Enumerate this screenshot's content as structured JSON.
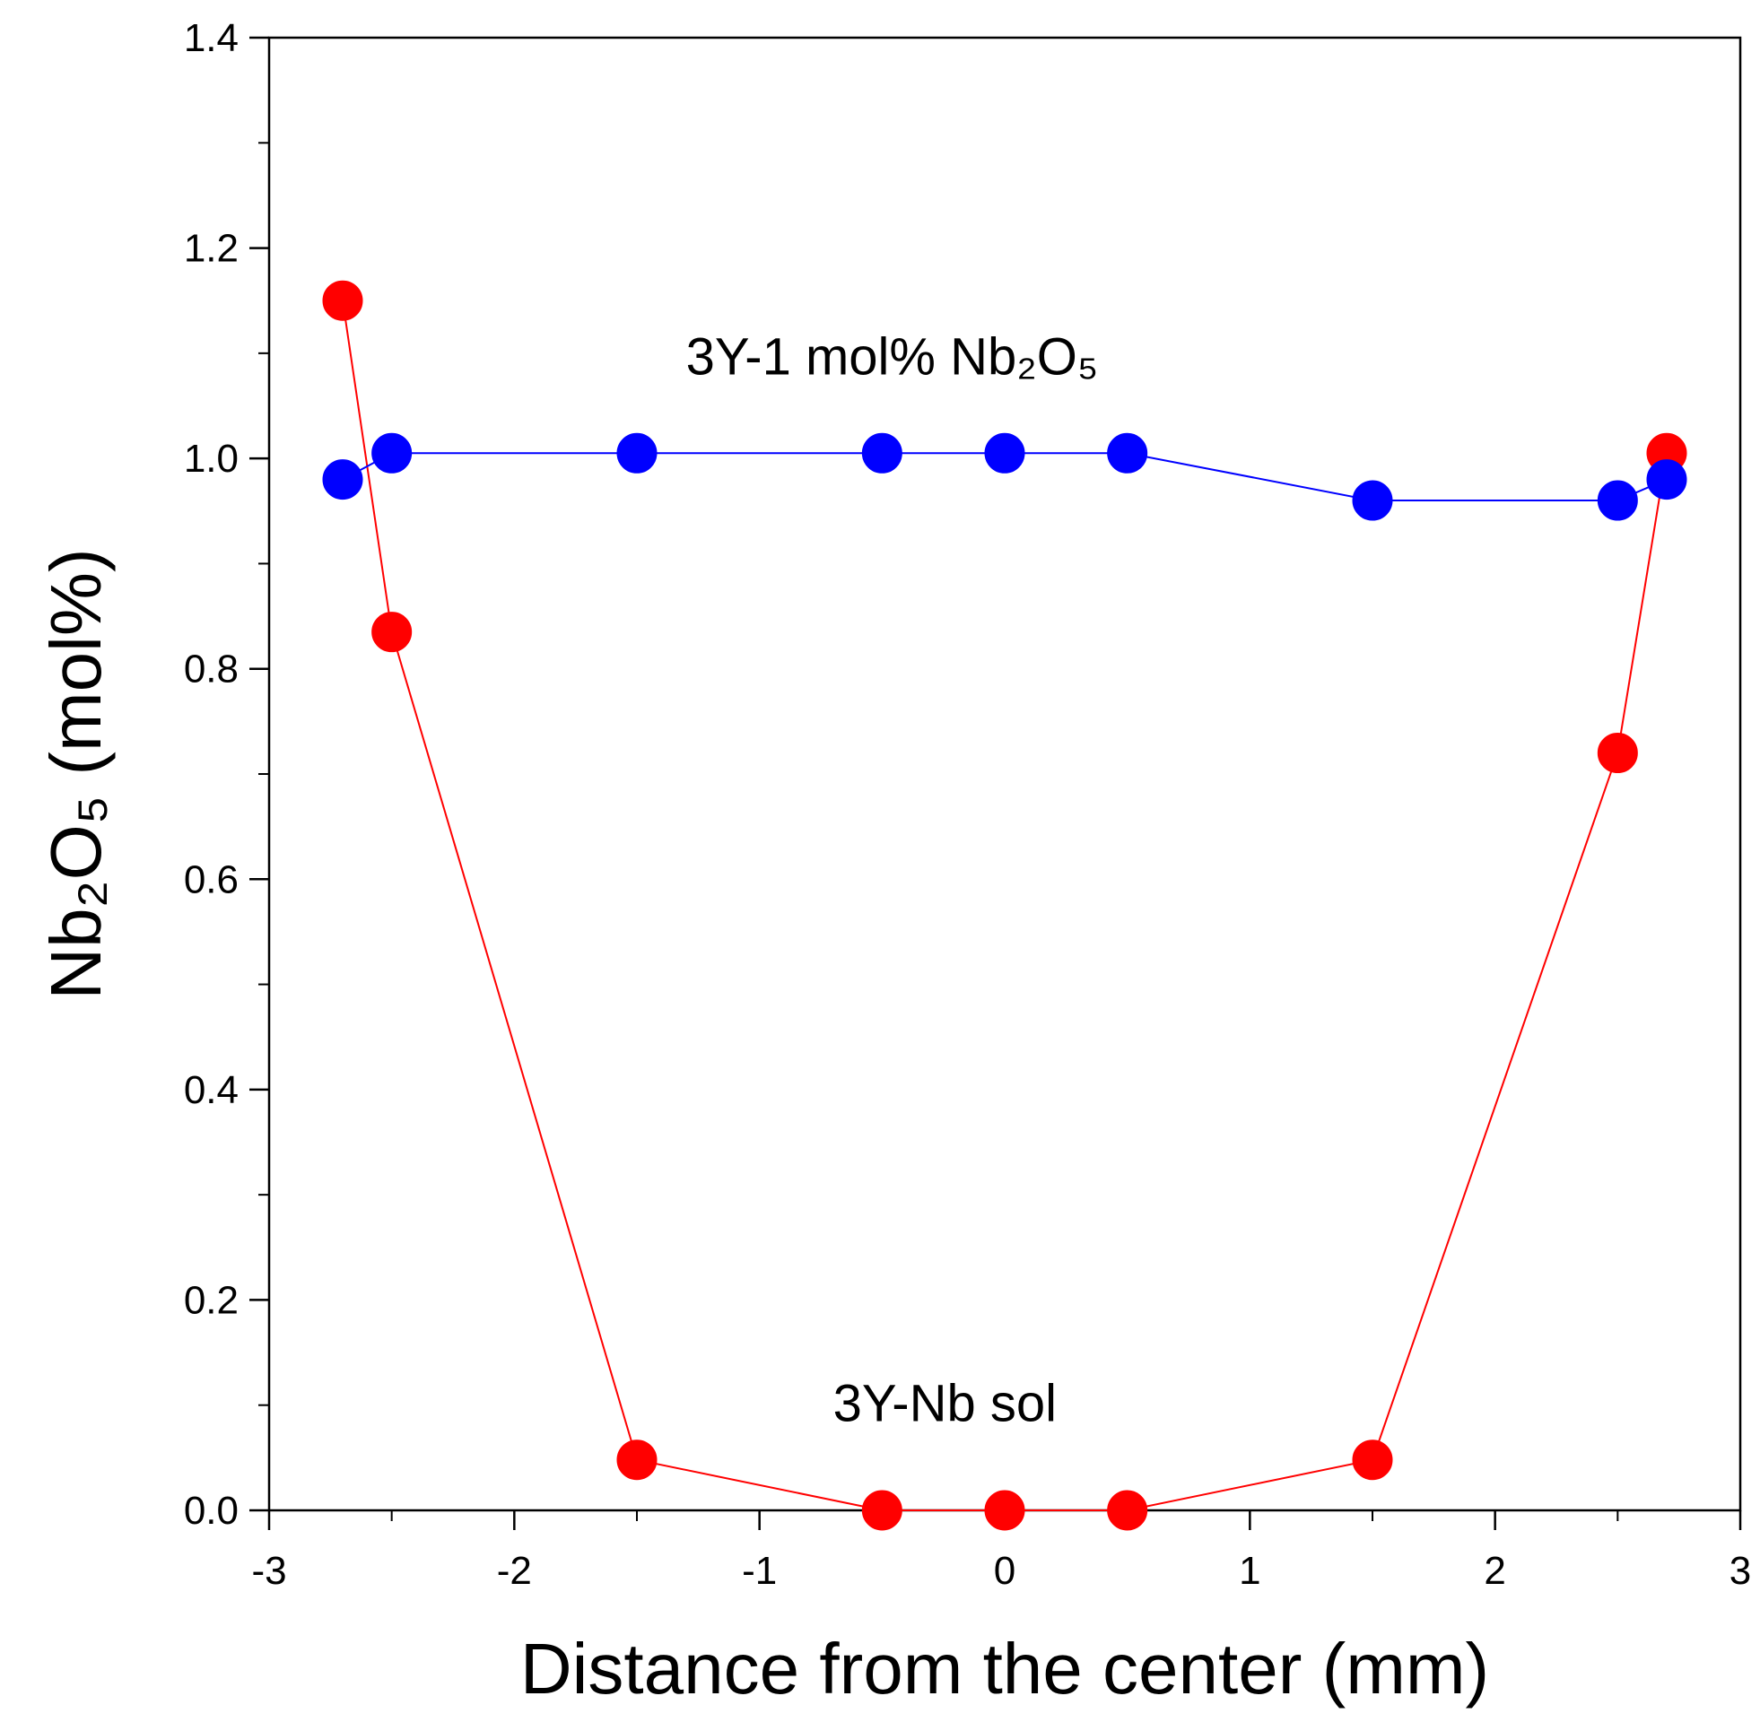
{
  "chart_data": {
    "type": "line",
    "title": "",
    "xlabel": "Distance from the center (mm)",
    "ylabel": "Nb₂O₅ (mol%)",
    "xlim": [
      -3,
      3
    ],
    "ylim": [
      0,
      1.4
    ],
    "x_ticks": [
      -3,
      -2,
      -1,
      0,
      1,
      2,
      3
    ],
    "y_ticks": [
      0.0,
      0.2,
      0.4,
      0.6,
      0.8,
      1.0,
      1.2,
      1.4
    ],
    "x_tick_labels": [
      "-3",
      "-2",
      "-1",
      "0",
      "1",
      "2",
      "3"
    ],
    "y_tick_labels": [
      "0.0",
      "0.2",
      "0.4",
      "0.6",
      "0.8",
      "1.0",
      "1.2",
      "1.4"
    ],
    "grid": false,
    "series": [
      {
        "name": "3Y-1 mol% Nb₂O₅",
        "color": "#0000ff",
        "x": [
          -2.7,
          -2.5,
          -1.5,
          -0.5,
          0,
          0.5,
          1.5,
          2.5,
          2.7
        ],
        "y": [
          0.98,
          1.005,
          1.005,
          1.005,
          1.005,
          1.005,
          0.96,
          0.96,
          0.98
        ]
      },
      {
        "name": "3Y-Nb sol",
        "color": "#ff0000",
        "x": [
          -2.7,
          -2.5,
          -1.5,
          -0.5,
          0,
          0.5,
          1.5,
          2.5,
          2.7
        ],
        "y": [
          1.15,
          0.835,
          0.048,
          0.0,
          0.0,
          0.0,
          0.048,
          0.72,
          1.005
        ]
      }
    ],
    "annotations": [
      {
        "text": "3Y-1 mol% Nb₂O₅",
        "x": -1.3,
        "y": 1.08
      },
      {
        "text": "3Y-Nb sol",
        "x": -0.7,
        "y": 0.085
      }
    ]
  }
}
